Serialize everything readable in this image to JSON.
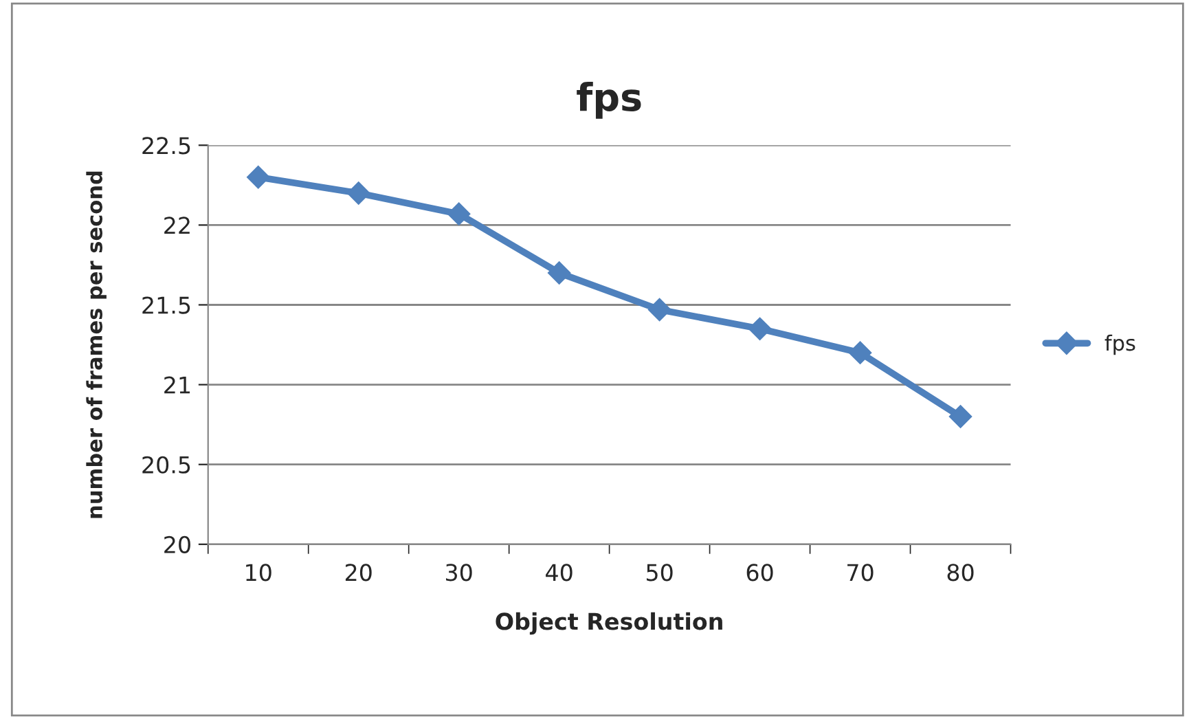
{
  "chart_data": {
    "type": "line",
    "title": "fps",
    "xlabel": "Object Resolution",
    "ylabel": "number of frames per second",
    "categories": [
      "10",
      "20",
      "30",
      "40",
      "50",
      "60",
      "70",
      "80"
    ],
    "series": [
      {
        "name": "fps",
        "color": "#4f81bd",
        "values": [
          22.3,
          22.2,
          22.07,
          21.7,
          21.47,
          21.35,
          21.2,
          20.8
        ]
      }
    ],
    "ylim": [
      20,
      22.5
    ],
    "yticks": [
      20,
      20.5,
      21,
      21.5,
      22,
      22.5
    ],
    "grid": "y",
    "legend": "right",
    "marker": "diamond",
    "line_style": "solid"
  }
}
